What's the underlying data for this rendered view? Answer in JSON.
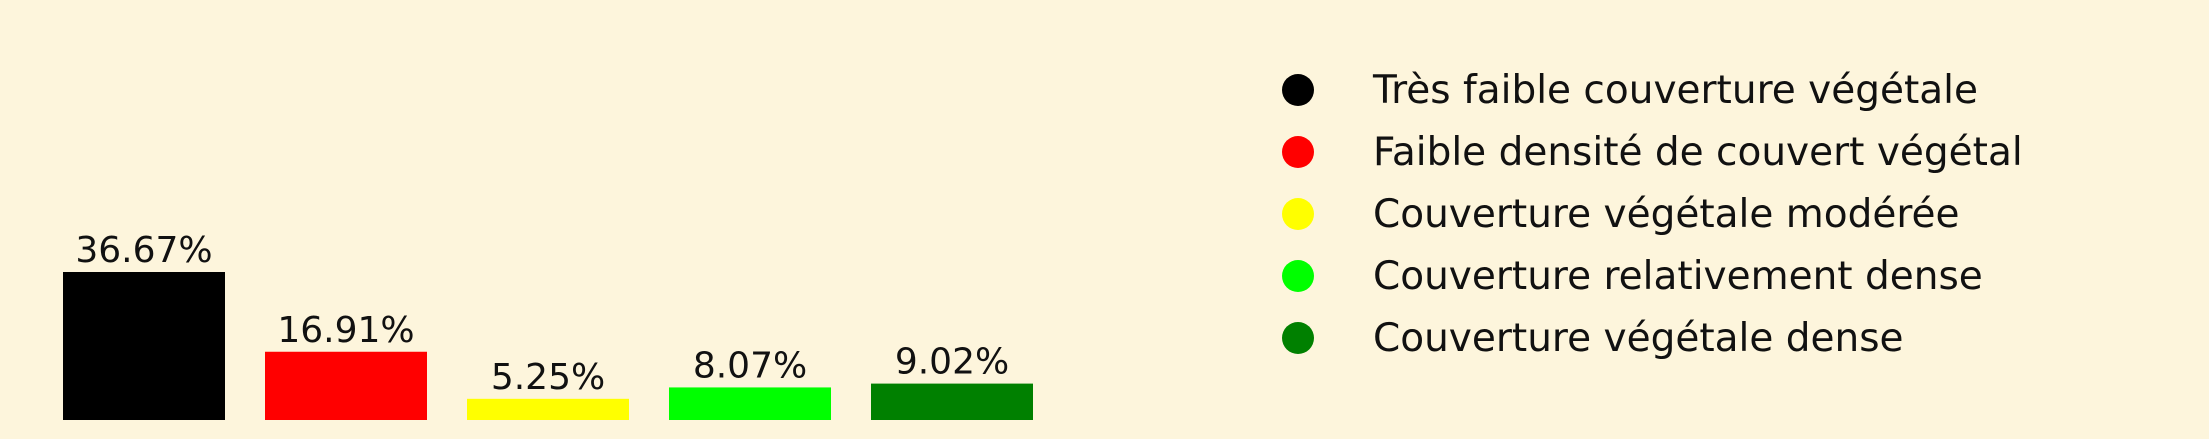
{
  "chart_data": {
    "type": "bar",
    "categories": [
      "Très faible couverture végétale",
      "Faible densité de couvert végétal",
      "Couverture végétale modérée",
      "Couverture relativement dense",
      "Couverture végétale dense"
    ],
    "values": [
      36.67,
      16.91,
      5.25,
      8.07,
      9.02
    ],
    "value_labels": [
      "36.67%",
      "16.91%",
      "5.25%",
      "8.07%",
      "9.02%"
    ],
    "colors": [
      "#000000",
      "#ff0000",
      "#ffff00",
      "#00ff00",
      "#008000"
    ],
    "title": "",
    "xlabel": "",
    "ylabel": "",
    "ylim": [
      0,
      36.67
    ],
    "grid": false,
    "legend": {
      "position": "right",
      "marker": "circle"
    },
    "background": "#fdf5dc"
  }
}
